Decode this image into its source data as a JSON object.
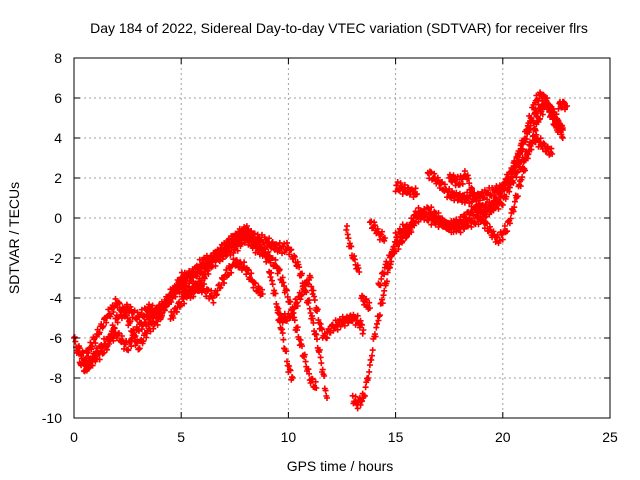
{
  "chart_data": {
    "type": "scatter",
    "title": "Day 184 of 2022, Sidereal Day-to-day VTEC variation (SDTVAR) for receiver flrs",
    "xlabel": "GPS time / hours",
    "ylabel": "SDTVAR / TECUs",
    "xlim": [
      0,
      25
    ],
    "ylim": [
      -10,
      8
    ],
    "xticks": [
      "0",
      "5",
      "10",
      "15",
      "20",
      "25"
    ],
    "yticks": [
      "-10",
      "-8",
      "-6",
      "-4",
      "-2",
      "0",
      "2",
      "4",
      "6",
      "8"
    ],
    "grid": true,
    "legend": "none",
    "marker": "+",
    "series_color": "#ff0000",
    "tracks": [
      [
        [
          0.0,
          -6.0
        ],
        [
          0.3,
          -7.2
        ],
        [
          0.6,
          -7.5
        ],
        [
          1.0,
          -6.8
        ],
        [
          1.5,
          -6.2
        ],
        [
          2.0,
          -5.8
        ],
        [
          2.5,
          -6.5
        ],
        [
          3.0,
          -5.5
        ],
        [
          3.5,
          -5.0
        ],
        [
          4.0,
          -4.5
        ],
        [
          4.5,
          -4.0
        ],
        [
          5.0,
          -3.2
        ],
        [
          5.5,
          -3.0
        ],
        [
          6.0,
          -2.5
        ],
        [
          6.5,
          -2.0
        ],
        [
          7.0,
          -1.5
        ],
        [
          7.5,
          -1.0
        ],
        [
          8.0,
          -0.7
        ],
        [
          8.5,
          -1.2
        ],
        [
          9.0,
          -2.0
        ],
        [
          9.5,
          -4.5
        ],
        [
          10.0,
          -7.5
        ],
        [
          10.2,
          -8.0
        ]
      ],
      [
        [
          0.2,
          -6.5
        ],
        [
          0.5,
          -7.0
        ],
        [
          1.0,
          -6.0
        ],
        [
          1.5,
          -5.0
        ],
        [
          2.0,
          -4.2
        ],
        [
          2.5,
          -5.0
        ],
        [
          3.0,
          -6.5
        ],
        [
          3.5,
          -5.5
        ],
        [
          4.0,
          -5.0
        ],
        [
          4.5,
          -3.8
        ],
        [
          5.0,
          -3.5
        ],
        [
          5.5,
          -3.8
        ],
        [
          6.0,
          -3.0
        ],
        [
          6.5,
          -2.2
        ],
        [
          7.0,
          -1.8
        ],
        [
          7.5,
          -1.5
        ],
        [
          8.0,
          -1.0
        ],
        [
          8.5,
          -1.5
        ],
        [
          9.0,
          -1.8
        ],
        [
          9.5,
          -2.5
        ],
        [
          10.0,
          -4.0
        ],
        [
          10.5,
          -6.0
        ],
        [
          11.0,
          -8.0
        ],
        [
          11.3,
          -8.5
        ]
      ],
      [
        [
          0.5,
          -7.5
        ],
        [
          1.0,
          -7.0
        ],
        [
          1.5,
          -6.5
        ],
        [
          2.0,
          -5.0
        ],
        [
          2.5,
          -4.5
        ],
        [
          3.0,
          -5.0
        ],
        [
          3.5,
          -4.5
        ],
        [
          4.0,
          -4.8
        ],
        [
          4.5,
          -4.0
        ],
        [
          5.0,
          -3.0
        ],
        [
          5.5,
          -2.8
        ],
        [
          6.0,
          -2.2
        ],
        [
          6.5,
          -2.0
        ],
        [
          7.0,
          -1.5
        ],
        [
          7.5,
          -1.0
        ],
        [
          8.0,
          -0.6
        ],
        [
          8.5,
          -1.0
        ],
        [
          9.0,
          -1.2
        ],
        [
          9.5,
          -1.5
        ],
        [
          10.0,
          -1.5
        ],
        [
          10.5,
          -2.5
        ],
        [
          11.0,
          -4.5
        ],
        [
          11.5,
          -7.0
        ],
        [
          11.8,
          -9.0
        ]
      ],
      [
        [
          4.5,
          -5.0
        ],
        [
          5.0,
          -4.2
        ],
        [
          5.5,
          -3.5
        ],
        [
          6.0,
          -3.5
        ],
        [
          6.5,
          -4.0
        ],
        [
          7.0,
          -3.0
        ],
        [
          7.5,
          -2.2
        ],
        [
          8.0,
          -2.5
        ],
        [
          8.5,
          -3.5
        ],
        [
          8.8,
          -3.8
        ]
      ],
      [
        [
          9.5,
          -5.0
        ],
        [
          10.0,
          -5.0
        ],
        [
          10.5,
          -4.0
        ],
        [
          11.0,
          -3.0
        ],
        [
          11.2,
          -4.0
        ],
        [
          11.5,
          -5.5
        ],
        [
          11.7,
          -6.0
        ],
        [
          12.0,
          -5.5
        ],
        [
          12.5,
          -5.2
        ],
        [
          13.0,
          -5.0
        ],
        [
          13.3,
          -5.2
        ],
        [
          13.5,
          -5.6
        ]
      ],
      [
        [
          12.7,
          -0.5
        ],
        [
          12.9,
          -1.5
        ],
        [
          13.1,
          -2.2
        ],
        [
          13.3,
          -2.7
        ]
      ],
      [
        [
          13.4,
          -4.0
        ],
        [
          13.6,
          -4.2
        ],
        [
          13.8,
          -4.5
        ]
      ],
      [
        [
          13.0,
          -9.0
        ],
        [
          13.2,
          -9.3
        ],
        [
          13.5,
          -9.0
        ],
        [
          13.8,
          -7.5
        ],
        [
          14.0,
          -6.0
        ],
        [
          14.2,
          -5.0
        ],
        [
          14.4,
          -4.0
        ],
        [
          14.6,
          -3.0
        ],
        [
          14.8,
          -2.0
        ],
        [
          15.0,
          -1.0
        ],
        [
          15.3,
          -0.6
        ],
        [
          15.5,
          -0.5
        ],
        [
          15.7,
          -0.6
        ]
      ],
      [
        [
          13.8,
          -0.3
        ],
        [
          14.0,
          -0.4
        ],
        [
          14.2,
          -0.8
        ],
        [
          14.5,
          -1.0
        ]
      ],
      [
        [
          14.2,
          -3.5
        ],
        [
          14.5,
          -2.5
        ],
        [
          15.0,
          -1.5
        ],
        [
          15.5,
          -0.8
        ],
        [
          16.0,
          0.3
        ],
        [
          16.5,
          0.0
        ],
        [
          17.0,
          -0.2
        ],
        [
          17.5,
          -0.4
        ],
        [
          18.0,
          -0.5
        ],
        [
          18.5,
          -0.2
        ],
        [
          19.0,
          0.0
        ],
        [
          19.5,
          0.5
        ],
        [
          20.0,
          1.5
        ],
        [
          20.5,
          2.5
        ],
        [
          21.0,
          3.8
        ],
        [
          21.5,
          5.2
        ],
        [
          22.0,
          5.8
        ],
        [
          22.5,
          5.0
        ],
        [
          22.8,
          4.0
        ]
      ],
      [
        [
          15.0,
          1.6
        ],
        [
          15.5,
          1.4
        ],
        [
          16.0,
          1.2
        ]
      ],
      [
        [
          16.5,
          2.3
        ],
        [
          17.0,
          1.8
        ],
        [
          17.5,
          1.2
        ],
        [
          18.0,
          1.0
        ],
        [
          18.5,
          1.0
        ],
        [
          19.0,
          1.1
        ],
        [
          19.5,
          1.3
        ],
        [
          20.0,
          1.5
        ],
        [
          20.5,
          2.5
        ],
        [
          21.0,
          4.0
        ],
        [
          21.5,
          5.8
        ],
        [
          21.8,
          6.2
        ],
        [
          22.2,
          5.5
        ],
        [
          22.5,
          4.8
        ],
        [
          22.8,
          4.4
        ]
      ],
      [
        [
          15.5,
          -0.8
        ],
        [
          16.0,
          0.0
        ],
        [
          16.5,
          0.4
        ],
        [
          17.0,
          0.0
        ],
        [
          17.5,
          -0.5
        ],
        [
          18.0,
          -0.2
        ],
        [
          18.5,
          0.3
        ],
        [
          19.0,
          0.5
        ],
        [
          19.5,
          0.6
        ],
        [
          20.0,
          0.8
        ],
        [
          20.5,
          2.0
        ],
        [
          21.0,
          3.0
        ],
        [
          21.5,
          4.0
        ],
        [
          22.0,
          3.5
        ],
        [
          22.3,
          3.2
        ]
      ],
      [
        [
          17.5,
          2.0
        ],
        [
          18.0,
          1.8
        ],
        [
          18.3,
          2.2
        ],
        [
          18.5,
          1.5
        ],
        [
          19.0,
          0.0
        ],
        [
          19.5,
          -0.8
        ],
        [
          19.8,
          -1.1
        ],
        [
          20.2,
          -0.5
        ],
        [
          20.5,
          0.5
        ],
        [
          21.0,
          2.5
        ],
        [
          21.5,
          4.5
        ],
        [
          22.0,
          5.8
        ],
        [
          22.5,
          4.5
        ],
        [
          22.8,
          4.5
        ]
      ],
      [
        [
          22.6,
          5.6
        ],
        [
          22.8,
          5.7
        ],
        [
          23.0,
          5.6
        ]
      ]
    ]
  }
}
